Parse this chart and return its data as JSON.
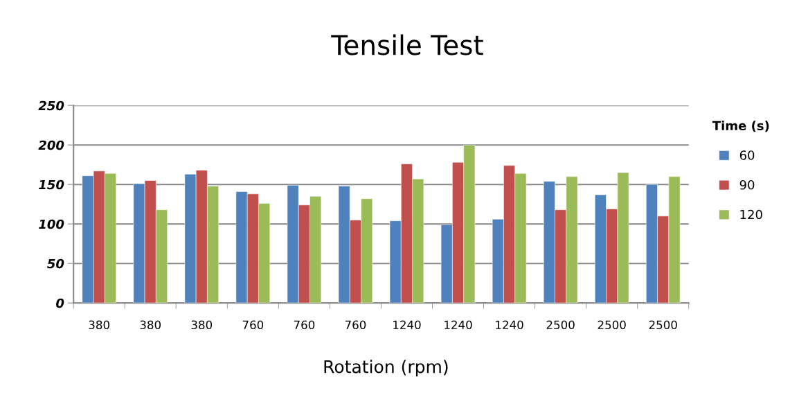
{
  "chart_data": {
    "type": "bar",
    "title": "Tensile Test",
    "xlabel": "Rotation (rpm)",
    "legend_title": "Time (s)",
    "categories": [
      "380",
      "380",
      "380",
      "760",
      "760",
      "760",
      "1240",
      "1240",
      "1240",
      "2500",
      "2500",
      "2500"
    ],
    "series": [
      {
        "name": "60",
        "color": "#4f81bd",
        "values": [
          161,
          151,
          163,
          141,
          149,
          148,
          104,
          99,
          106,
          154,
          137,
          150
        ]
      },
      {
        "name": "90",
        "color": "#c0504d",
        "values": [
          167,
          155,
          168,
          138,
          124,
          105,
          176,
          178,
          174,
          118,
          119,
          110
        ]
      },
      {
        "name": "120",
        "color": "#9bbb59",
        "values": [
          164,
          118,
          148,
          126,
          135,
          132,
          157,
          200,
          164,
          160,
          165,
          160
        ]
      }
    ],
    "ylim": [
      0,
      250
    ],
    "yticks": [
      0,
      50,
      100,
      150,
      200,
      250
    ],
    "grid": "y",
    "legend": "right"
  }
}
